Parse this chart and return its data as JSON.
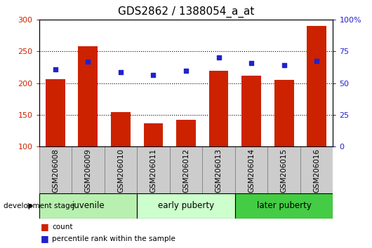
{
  "title": "GDS2862 / 1388054_a_at",
  "categories": [
    "GSM206008",
    "GSM206009",
    "GSM206010",
    "GSM206011",
    "GSM206012",
    "GSM206013",
    "GSM206014",
    "GSM206015",
    "GSM206016"
  ],
  "bar_values": [
    206,
    258,
    154,
    136,
    142,
    219,
    212,
    205,
    290
  ],
  "scatter_values_left": [
    222,
    234,
    217,
    213,
    219,
    240,
    232,
    228,
    235
  ],
  "bar_color": "#cc2200",
  "scatter_color": "#2222cc",
  "bar_bottom": 100,
  "ylim_left": [
    100,
    300
  ],
  "ylim_right": [
    0,
    100
  ],
  "yticks_left": [
    100,
    150,
    200,
    250,
    300
  ],
  "yticks_right": [
    0,
    25,
    50,
    75,
    100
  ],
  "ytick_labels_right": [
    "0",
    "25",
    "50",
    "75",
    "100%"
  ],
  "groups": [
    {
      "label": "juvenile",
      "span": [
        0,
        3
      ],
      "color": "#b8f0b0"
    },
    {
      "label": "early puberty",
      "span": [
        3,
        6
      ],
      "color": "#ccffcc"
    },
    {
      "label": "later puberty",
      "span": [
        6,
        9
      ],
      "color": "#44cc44"
    }
  ],
  "dev_stage_label": "development stage",
  "legend_count_label": "count",
  "legend_percentile_label": "percentile rank within the sample",
  "title_fontsize": 11,
  "axis_tick_fontsize": 8,
  "bar_width": 0.6,
  "x_tick_fontsize": 7.5,
  "group_fontsize": 8.5,
  "gray_box_color": "#cccccc",
  "gray_box_edge": "#888888"
}
